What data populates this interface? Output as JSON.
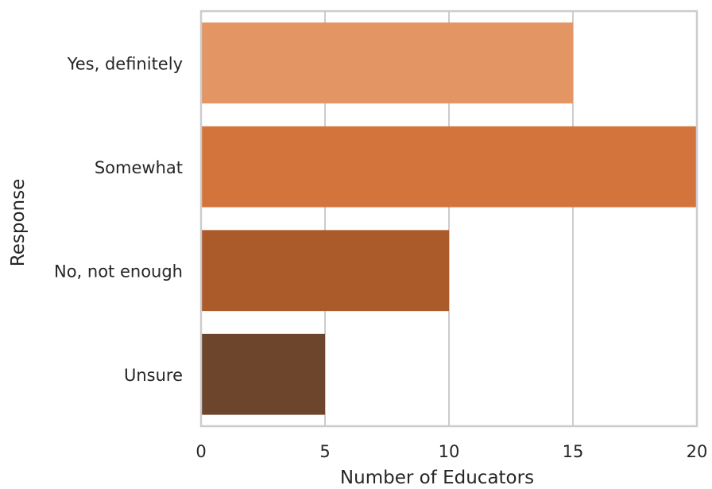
{
  "chart_data": {
    "type": "bar",
    "orientation": "horizontal",
    "categories": [
      "Yes, definitely",
      "Somewhat",
      "No, not enough",
      "Unsure"
    ],
    "values": [
      15,
      20,
      10,
      5
    ],
    "colors": [
      "#E39563",
      "#D4743D",
      "#AB5A2A",
      "#6D452D"
    ],
    "xlabel": "Number of Educators",
    "ylabel": "Response",
    "xlim": [
      0,
      20
    ],
    "xticks": [
      0,
      5,
      10,
      15,
      20
    ],
    "xtick_labels": [
      "0",
      "5",
      "10",
      "15",
      "20"
    ],
    "grid": "x",
    "grid_color": "#cccccc",
    "spine_color": "#cccccc"
  }
}
